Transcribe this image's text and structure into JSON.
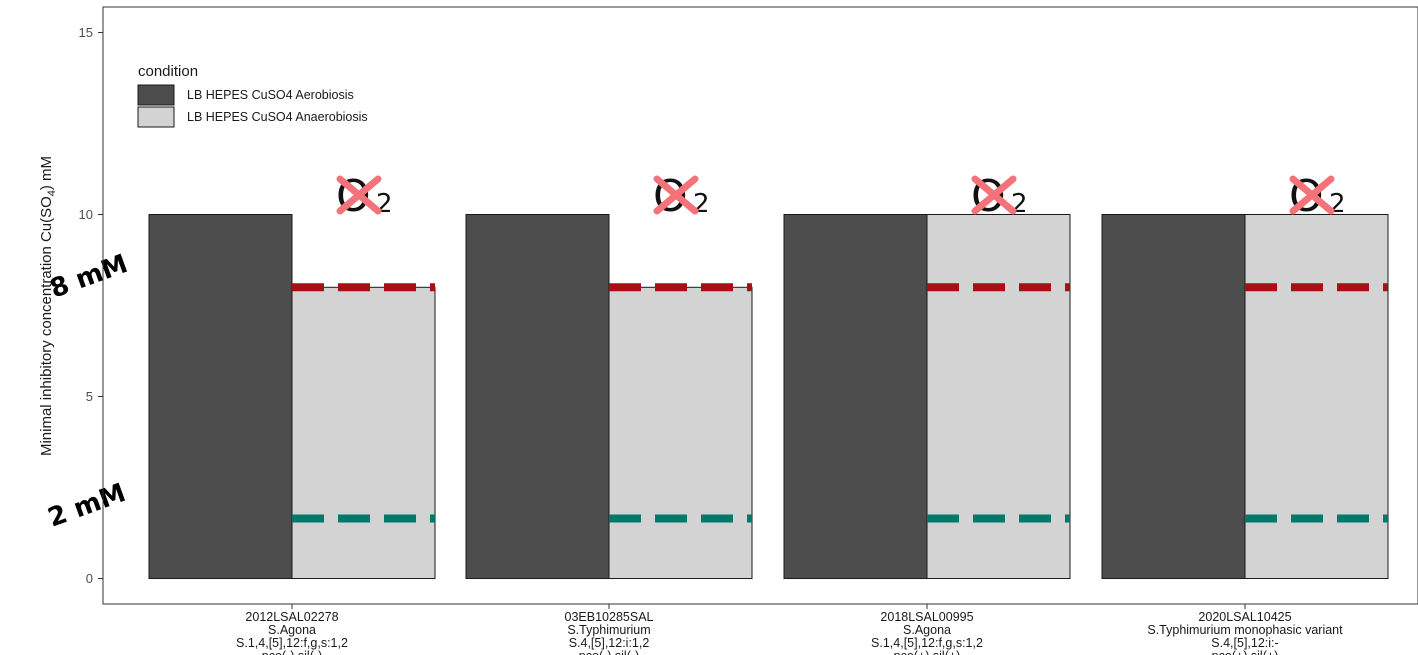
{
  "chart_data": {
    "type": "bar",
    "ylabel": "Minimal inhibitory concentration Cu(SO4) mM",
    "ylabel_parts": {
      "before": "Minimal inhibitory concentration Cu(SO",
      "subscript": "4",
      "after": ") mM"
    },
    "ylim": [
      -0.7,
      15.7
    ],
    "yticks": [
      0,
      5,
      10,
      15
    ],
    "grid": false,
    "legend": {
      "title": "condition",
      "placement": "top-left",
      "items": [
        {
          "label": "LB HEPES CuSO4 Aerobiosis",
          "color": "#4d4d4d"
        },
        {
          "label": "LB HEPES CuSO4 Anaerobiosis",
          "color": "#d3d3d3"
        }
      ]
    },
    "categories": [
      {
        "lines": [
          "2012LSAL02278",
          "S.Agona",
          "S.1,4,[5],12:f,g,s:1,2",
          "pco(-) sil(-)"
        ]
      },
      {
        "lines": [
          "03EB10285SAL",
          "S.Typhimurium",
          "S.4,[5],12:i:1,2",
          "pco(-) sil(-)"
        ]
      },
      {
        "lines": [
          "2018LSAL00995",
          "S.Agona",
          "S.1,4,[5],12:f,g,s:1,2",
          "pco(+) sil(+)"
        ]
      },
      {
        "lines": [
          "2020LSAL10425",
          "S.Typhimurium monophasic variant",
          "S.4,[5],12:i:-",
          "pco(+) sil(+)"
        ]
      }
    ],
    "series": [
      {
        "name": "LB HEPES CuSO4 Aerobiosis",
        "color": "#4d4d4d",
        "values": [
          10,
          10,
          10,
          10
        ]
      },
      {
        "name": "LB HEPES CuSO4 Anaerobiosis",
        "color": "#d3d3d3",
        "values": [
          8,
          8,
          10,
          10
        ]
      }
    ],
    "reference_lines": [
      {
        "label": "8 mM",
        "value": 8,
        "color": "#a50f15"
      },
      {
        "label": "2 mM",
        "value": 1.65,
        "color": "#00796b"
      }
    ],
    "annotations": {
      "o2_symbol": {
        "letter": "O",
        "subscript": "2",
        "cross_color": "#f4727a"
      }
    }
  }
}
